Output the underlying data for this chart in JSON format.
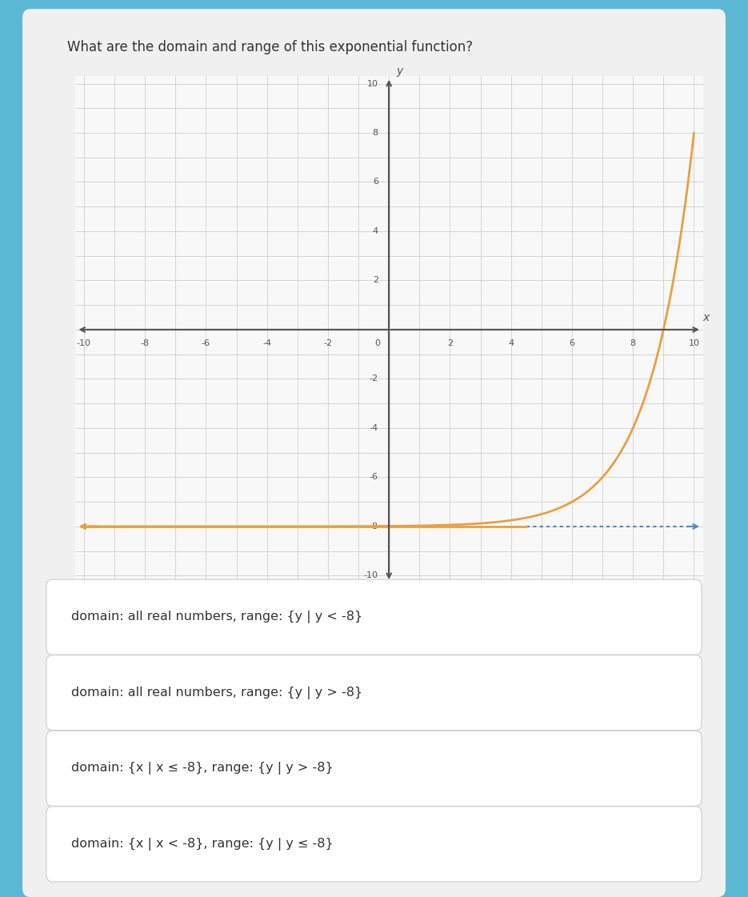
{
  "title": "What are the domain and range of this exponential function?",
  "title_fontsize": 12,
  "title_color": "#333333",
  "bg_color": "#5bb8d4",
  "card_color": "#f0f0f0",
  "panel_color": "#f8f8f8",
  "grid_color": "#c8c8c8",
  "axis_color": "#555555",
  "curve_color": "#e8a040",
  "asymptote_y": -8,
  "asymptote_color_left": "#e8a040",
  "asymptote_color_right": "#5588bb",
  "xlim": [
    -10,
    10
  ],
  "ylim": [
    -10,
    10
  ],
  "xticks": [
    -10,
    -8,
    -6,
    -4,
    -2,
    0,
    2,
    4,
    6,
    8,
    10
  ],
  "yticks": [
    -10,
    -8,
    -6,
    -4,
    -2,
    0,
    2,
    4,
    6,
    8,
    10
  ],
  "options": [
    "domain: all real numbers, range: {y | y < -8}",
    "domain: all real numbers, range: {y | y > -8}",
    "domain: {x | x ≤ -8}, range: {y | y > -8}",
    "domain: {x | x < -8}, range: {y | y ≤ -8}"
  ],
  "option_bg": "#ffffff",
  "option_border": "#cccccc",
  "option_fontsize": 11.5,
  "option_text_color": "#333333"
}
